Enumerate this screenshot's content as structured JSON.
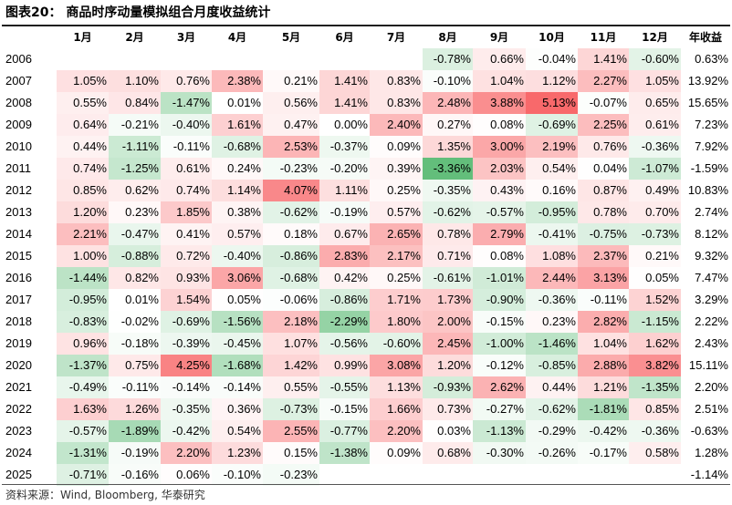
{
  "title": "图表20：  商品时序动量模拟组合月度收益统计",
  "header": [
    "",
    "1月",
    "2月",
    "3月",
    "4月",
    "5月",
    "6月",
    "7月",
    "8月",
    "9月",
    "10月",
    "11月",
    "12月",
    "年收益"
  ],
  "rows": [
    {
      "year": "2006",
      "months": [
        null,
        null,
        null,
        null,
        null,
        null,
        null,
        -0.78,
        0.66,
        -0.04,
        1.41,
        -0.6
      ],
      "annual": 0.63
    },
    {
      "year": "2007",
      "months": [
        1.05,
        1.1,
        0.76,
        2.38,
        0.21,
        1.41,
        0.83,
        -0.1,
        1.04,
        1.12,
        2.27,
        1.05
      ],
      "annual": 13.92
    },
    {
      "year": "2008",
      "months": [
        0.55,
        0.84,
        -1.47,
        0.01,
        0.56,
        1.41,
        0.83,
        2.48,
        3.88,
        5.13,
        -0.07,
        0.65
      ],
      "annual": 15.65
    },
    {
      "year": "2009",
      "months": [
        0.64,
        -0.21,
        -0.4,
        1.61,
        0.47,
        0.0,
        2.4,
        0.27,
        0.08,
        -0.69,
        2.25,
        0.61
      ],
      "annual": 7.23
    },
    {
      "year": "2010",
      "months": [
        0.44,
        -1.11,
        -0.11,
        -0.68,
        2.53,
        -0.37,
        0.09,
        1.35,
        3.0,
        2.19,
        0.76,
        -0.36
      ],
      "annual": 7.92
    },
    {
      "year": "2011",
      "months": [
        0.74,
        -1.25,
        0.61,
        0.24,
        -0.23,
        -0.2,
        0.39,
        -3.36,
        2.03,
        0.54,
        0.04,
        -1.07
      ],
      "annual": -1.59
    },
    {
      "year": "2012",
      "months": [
        0.85,
        0.62,
        0.74,
        1.14,
        4.07,
        1.11,
        0.25,
        -0.35,
        0.43,
        0.16,
        0.87,
        0.49
      ],
      "annual": 10.83
    },
    {
      "year": "2013",
      "months": [
        1.2,
        0.23,
        1.85,
        0.38,
        -0.62,
        -0.19,
        0.57,
        -0.62,
        -0.57,
        -0.95,
        0.78,
        0.7
      ],
      "annual": 2.74
    },
    {
      "year": "2014",
      "months": [
        2.21,
        -0.47,
        0.41,
        0.57,
        0.18,
        0.67,
        2.65,
        0.78,
        2.79,
        -0.41,
        -0.75,
        -0.73
      ],
      "annual": 8.12
    },
    {
      "year": "2015",
      "months": [
        1.0,
        -0.88,
        0.72,
        -0.4,
        -0.86,
        2.83,
        2.17,
        0.71,
        0.08,
        1.08,
        2.37,
        0.21
      ],
      "annual": 9.32
    },
    {
      "year": "2016",
      "months": [
        -1.44,
        0.82,
        0.93,
        3.06,
        -0.68,
        0.42,
        0.25,
        -0.61,
        -1.01,
        2.44,
        3.13,
        0.05
      ],
      "annual": 7.47
    },
    {
      "year": "2017",
      "months": [
        -0.95,
        0.01,
        1.54,
        0.05,
        -0.06,
        -0.86,
        1.71,
        1.73,
        -0.9,
        -0.36,
        -0.11,
        1.52
      ],
      "annual": 3.29
    },
    {
      "year": "2018",
      "months": [
        -0.83,
        -0.02,
        -0.69,
        -1.56,
        2.18,
        -2.29,
        1.8,
        2.0,
        -0.15,
        0.23,
        2.82,
        -1.15
      ],
      "annual": 2.22
    },
    {
      "year": "2019",
      "months": [
        0.96,
        -0.18,
        -0.39,
        -0.45,
        1.07,
        -0.56,
        -0.6,
        2.45,
        -1.0,
        -1.46,
        1.04,
        1.62
      ],
      "annual": 2.43
    },
    {
      "year": "2020",
      "months": [
        -1.37,
        0.75,
        4.25,
        -1.68,
        1.42,
        0.99,
        3.08,
        1.2,
        -0.12,
        -0.85,
        2.88,
        3.82
      ],
      "annual": 15.11
    },
    {
      "year": "2021",
      "months": [
        -0.49,
        -0.11,
        -0.14,
        -0.14,
        0.55,
        -0.55,
        1.13,
        -0.93,
        2.62,
        0.44,
        1.21,
        -1.35
      ],
      "annual": 2.2
    },
    {
      "year": "2022",
      "months": [
        1.63,
        1.26,
        -0.35,
        0.36,
        -0.73,
        -0.15,
        1.66,
        0.73,
        -0.27,
        -0.62,
        -1.81,
        0.85
      ],
      "annual": 2.51
    },
    {
      "year": "2023",
      "months": [
        -0.57,
        -1.89,
        -0.42,
        0.54,
        2.55,
        -0.77,
        2.2,
        0.03,
        -1.13,
        -0.29,
        -0.42,
        -0.36
      ],
      "annual": -0.63
    },
    {
      "year": "2024",
      "months": [
        -1.31,
        -0.19,
        2.2,
        1.23,
        0.15,
        -1.38,
        0.09,
        0.68,
        -0.3,
        -0.26,
        -0.17,
        0.58
      ],
      "annual": 1.28
    },
    {
      "year": "2025",
      "months": [
        -0.71,
        -0.16,
        0.06,
        -0.1,
        -0.23,
        null,
        null,
        null,
        null,
        null,
        null,
        null
      ],
      "annual": -1.14
    }
  ],
  "source": "资料来源：Wind, Bloomberg, 华泰研究",
  "colors": {
    "positive": "#f8696b",
    "negative": "#63be7b",
    "neutral": "#ffffff"
  }
}
